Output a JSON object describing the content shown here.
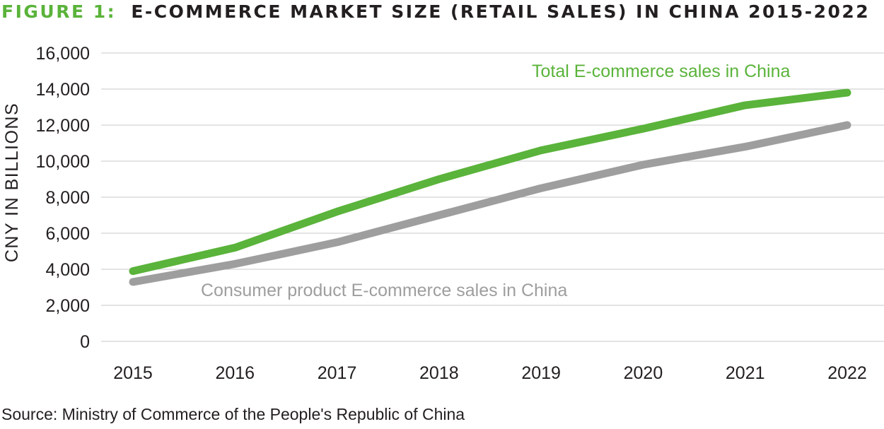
{
  "colors": {
    "title_prefix": "#5ab33a",
    "title_main": "#231f20",
    "total_series": "#5ab33a",
    "consumer_series": "#9e9e9e",
    "grid": "#c8c8c8",
    "text": "#231f20"
  },
  "title_prefix": "FIGURE 1:",
  "title_main": "E-COMMERCE MARKET SIZE (RETAIL SALES) IN CHINA 2015-2022",
  "source": "Source: Ministry of Commerce of the People's Republic of China",
  "chart_data": {
    "type": "line",
    "title": "FIGURE 1: E-COMMERCE MARKET SIZE (RETAIL SALES) IN CHINA 2015-2022",
    "xlabel": "",
    "ylabel": "CNY IN BILLIONS",
    "x": [
      "2015",
      "2016",
      "2017",
      "2018",
      "2019",
      "2020",
      "2021",
      "2022"
    ],
    "ylim": [
      0,
      16000
    ],
    "yticks": [
      0,
      2000,
      4000,
      6000,
      8000,
      10000,
      12000,
      14000,
      16000
    ],
    "ytick_labels": [
      "0",
      "2,000",
      "4,000",
      "6,000",
      "8,000",
      "10,000",
      "12,000",
      "14,000",
      "16,000"
    ],
    "grid": true,
    "legend": "direct labels on lines",
    "series": [
      {
        "name": "Total E-commerce sales in China",
        "color": "#5ab33a",
        "values": [
          3900,
          5200,
          7200,
          9000,
          10600,
          11800,
          13100,
          13800
        ]
      },
      {
        "name": "Consumer product E-commerce sales in China",
        "color": "#9e9e9e",
        "values": [
          3300,
          4300,
          5500,
          7000,
          8500,
          9800,
          10800,
          12000
        ]
      }
    ]
  }
}
